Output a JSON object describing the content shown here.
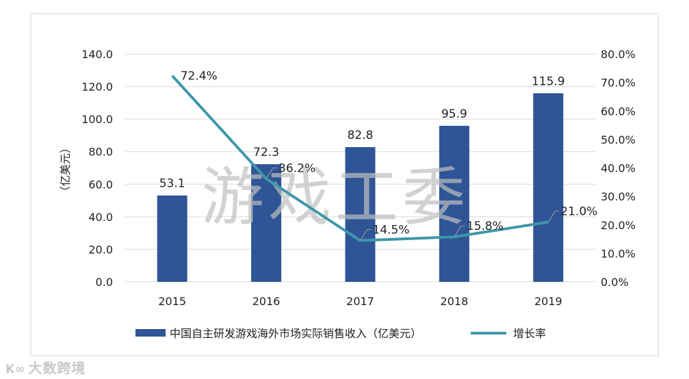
{
  "chart_data": {
    "type": "bar",
    "categories": [
      "2015",
      "2016",
      "2017",
      "2018",
      "2019"
    ],
    "series": [
      {
        "name": "中国自主研发游戏海外市场实际销售收入（亿美元）",
        "type": "bar",
        "axis": "left",
        "values": [
          53.1,
          72.3,
          82.8,
          95.9,
          115.9
        ],
        "labels": [
          "53.1",
          "72.3",
          "82.8",
          "95.9",
          "115.9"
        ],
        "color": "#2F5597"
      },
      {
        "name": "增长率",
        "type": "line",
        "axis": "right",
        "values": [
          72.4,
          36.2,
          14.5,
          15.8,
          21.0
        ],
        "labels": [
          "72.4%",
          "36.2%",
          "14.5%",
          "15.8%",
          "21.0%"
        ],
        "color": "#3E97AA"
      }
    ],
    "ylabel": "（亿美元）",
    "ylim": [
      0,
      140
    ],
    "yticks": [
      "0.0",
      "20.0",
      "40.0",
      "60.0",
      "80.0",
      "100.0",
      "120.0",
      "140.0"
    ],
    "y2lim": [
      0,
      80
    ],
    "y2ticks": [
      "0.0%",
      "10.0%",
      "20.0%",
      "30.0%",
      "40.0%",
      "50.0%",
      "60.0%",
      "70.0%",
      "80.0%"
    ],
    "grid": true,
    "legend": "bottom",
    "watermark": "游戏工委"
  },
  "logo": {
    "text": "大数跨境",
    "mark": "K∞"
  }
}
